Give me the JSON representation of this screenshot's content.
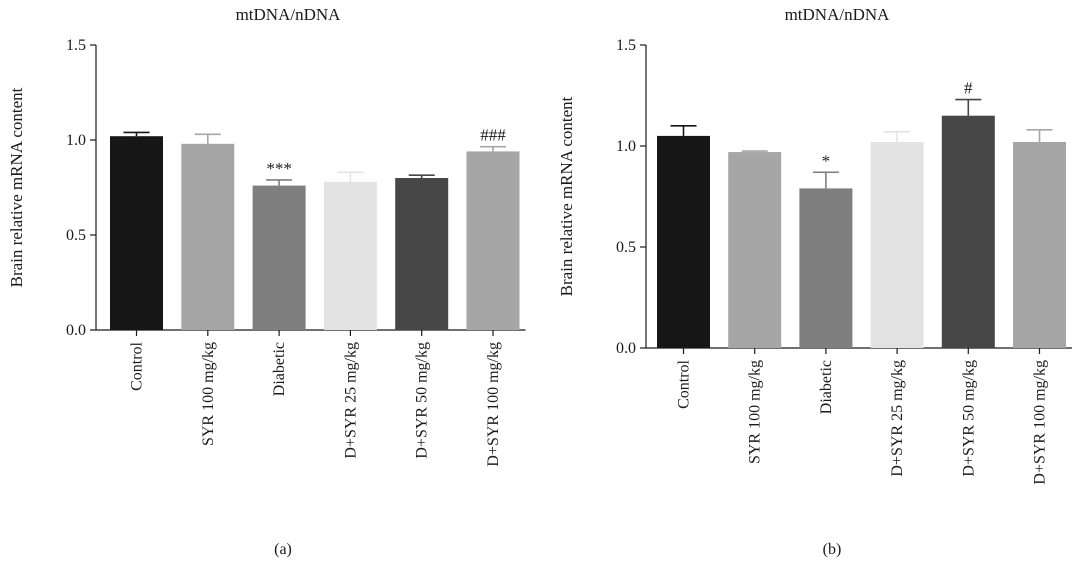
{
  "chart_data": [
    {
      "type": "bar",
      "panel_label": "(a)",
      "title": "mtDNA/nDNA",
      "xlabel": "",
      "ylabel": "Brain relative mRNA content",
      "ylim": [
        0,
        1.5
      ],
      "yticks": [
        "0.0",
        "0.5",
        "1.0",
        "1.5"
      ],
      "categories": [
        "Control",
        "SYR 100 mg/kg",
        "Diabetic",
        "D+SYR 25 mg/kg",
        "D+SYR 50 mg/kg",
        "D+SYR 100 mg/kg"
      ],
      "values": [
        1.02,
        0.98,
        0.76,
        0.78,
        0.8,
        0.94
      ],
      "errors": [
        0.02,
        0.05,
        0.03,
        0.05,
        0.015,
        0.025
      ],
      "annotations": [
        "",
        "",
        "***",
        "",
        "",
        "###"
      ],
      "colors": [
        "#161616",
        "#a6a6a6",
        "#7f7f7f",
        "#e3e3e3",
        "#474747",
        "#a6a6a6"
      ]
    },
    {
      "type": "bar",
      "panel_label": "(b)",
      "title": "mtDNA/nDNA",
      "xlabel": "",
      "ylabel": "Brain relative mRNA content",
      "ylim": [
        0,
        1.5
      ],
      "yticks": [
        "0.0",
        "0.5",
        "1.0",
        "1.5"
      ],
      "categories": [
        "Control",
        "SYR 100 mg/kg",
        "Diabetic",
        "D+SYR 25 mg/kg",
        "D+SYR 50 mg/kg",
        "D+SYR 100 mg/kg"
      ],
      "values": [
        1.05,
        0.97,
        0.79,
        1.02,
        1.15,
        1.02
      ],
      "errors": [
        0.05,
        0.005,
        0.08,
        0.05,
        0.08,
        0.06
      ],
      "annotations": [
        "",
        "",
        "*",
        "",
        "#",
        ""
      ],
      "colors": [
        "#161616",
        "#a6a6a6",
        "#7f7f7f",
        "#e3e3e3",
        "#474747",
        "#a6a6a6"
      ]
    }
  ]
}
